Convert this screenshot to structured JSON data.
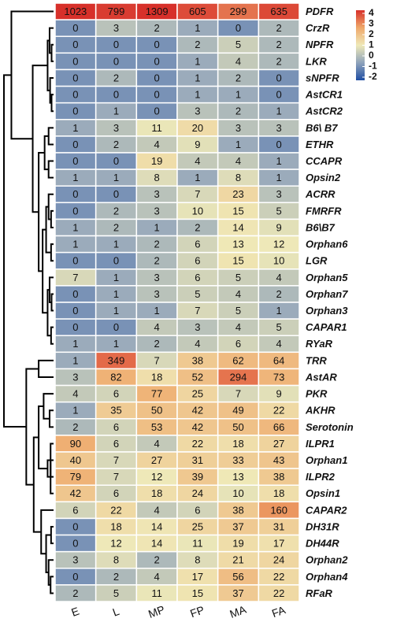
{
  "chart_data": {
    "type": "heatmap",
    "rows": [
      "PDFR",
      "CrzR",
      "NPFR",
      "LKR",
      "sNPFR",
      "AstCR1",
      "AstCR2",
      "B6\\ B7",
      "ETHR",
      "CCAPR",
      "Opsin2",
      "ACRR",
      "FMRFR",
      "B6\\B7",
      "Orphan6",
      "LGR",
      "Orphan5",
      "Orphan7",
      "Orphan3",
      "CAPAR1",
      "RYaR",
      "TRR",
      "AstAR",
      "PKR",
      "AKHR",
      "Serotonin",
      "ILPR1",
      "Orphan1",
      "ILPR2",
      "Opsin1",
      "CAPAR2",
      "DH31R",
      "DH44R",
      "Orphan2",
      "Orphan4",
      "RFaR"
    ],
    "columns": [
      "E",
      "L",
      "MP",
      "FP",
      "MA",
      "FA"
    ],
    "values": [
      [
        1023,
        799,
        1309,
        605,
        299,
        635
      ],
      [
        0,
        3,
        2,
        1,
        0,
        2
      ],
      [
        0,
        0,
        0,
        2,
        5,
        2
      ],
      [
        0,
        0,
        0,
        1,
        4,
        2
      ],
      [
        0,
        2,
        0,
        1,
        2,
        0
      ],
      [
        0,
        0,
        0,
        1,
        1,
        0
      ],
      [
        0,
        1,
        0,
        3,
        2,
        1
      ],
      [
        1,
        3,
        11,
        20,
        3,
        3
      ],
      [
        0,
        2,
        4,
        9,
        1,
        0
      ],
      [
        0,
        0,
        19,
        4,
        4,
        1
      ],
      [
        1,
        1,
        8,
        1,
        8,
        1
      ],
      [
        0,
        0,
        3,
        7,
        23,
        3
      ],
      [
        0,
        2,
        3,
        10,
        15,
        5
      ],
      [
        1,
        2,
        1,
        2,
        14,
        9
      ],
      [
        1,
        1,
        2,
        6,
        13,
        12
      ],
      [
        0,
        0,
        2,
        6,
        15,
        10
      ],
      [
        7,
        1,
        3,
        6,
        5,
        4
      ],
      [
        0,
        1,
        3,
        5,
        4,
        2
      ],
      [
        0,
        1,
        1,
        7,
        5,
        1
      ],
      [
        0,
        0,
        4,
        3,
        4,
        5
      ],
      [
        1,
        1,
        2,
        4,
        6,
        4
      ],
      [
        1,
        349,
        7,
        38,
        62,
        64
      ],
      [
        3,
        82,
        18,
        52,
        294,
        73
      ],
      [
        4,
        6,
        77,
        25,
        7,
        9
      ],
      [
        1,
        35,
        50,
        42,
        49,
        22
      ],
      [
        2,
        6,
        53,
        42,
        50,
        66
      ],
      [
        90,
        6,
        4,
        22,
        18,
        27
      ],
      [
        40,
        7,
        27,
        31,
        33,
        43
      ],
      [
        79,
        7,
        12,
        39,
        13,
        38
      ],
      [
        42,
        6,
        18,
        24,
        10,
        18
      ],
      [
        6,
        22,
        4,
        6,
        38,
        160
      ],
      [
        0,
        18,
        14,
        25,
        37,
        31
      ],
      [
        0,
        12,
        14,
        11,
        19,
        17
      ],
      [
        3,
        8,
        2,
        8,
        21,
        24
      ],
      [
        0,
        2,
        4,
        17,
        56,
        22
      ],
      [
        2,
        5,
        11,
        15,
        37,
        22
      ]
    ],
    "clim": [
      -2,
      4
    ],
    "colorbar_ticks": [
      4,
      3,
      2,
      1,
      0,
      -1,
      -2
    ],
    "colors": [
      "#1f4ea3",
      "#8fa3bb",
      "#efe9b8",
      "#efa86a",
      "#d7302a"
    ]
  }
}
